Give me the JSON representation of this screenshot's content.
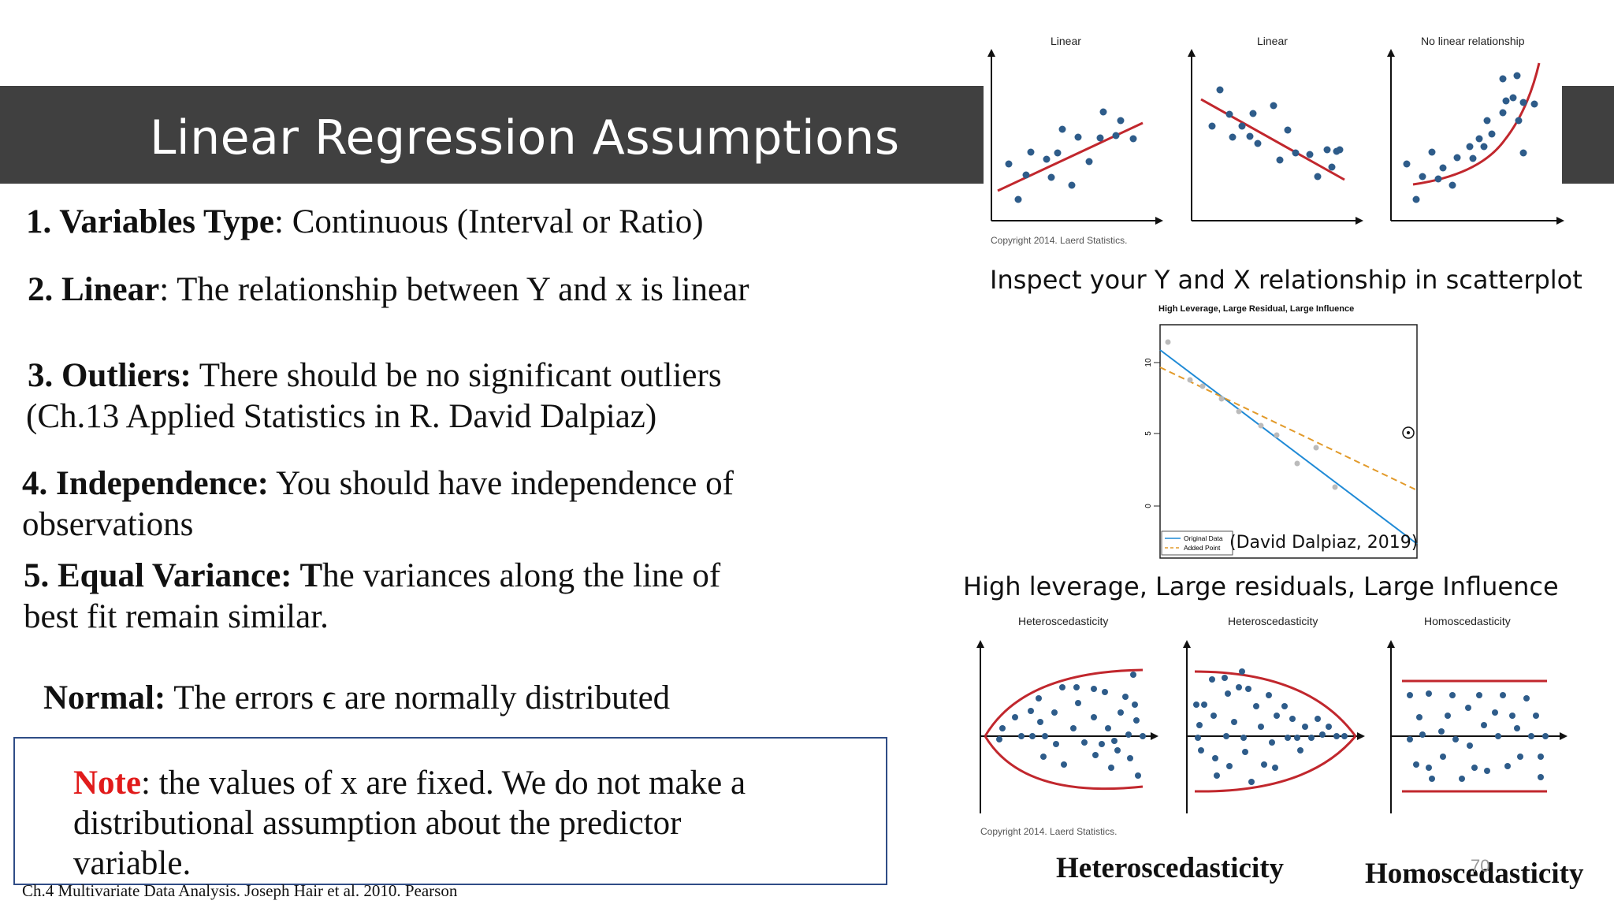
{
  "slide": {
    "title": "Linear Regression Assumptions",
    "page_number": "70"
  },
  "points": {
    "p1": {
      "label": "1. Variables Type",
      "text": ": Continuous (Interval or Ratio)"
    },
    "p2": {
      "label": "2. Linear",
      "text": ": The relationship between Y and x is linear"
    },
    "p3": {
      "label": "3. Outliers:",
      "text": " There should be no significant outliers",
      "line2": "(Ch.13 Applied Statistics in R. David Dalpiaz)"
    },
    "p4": {
      "label": "4. Independence:",
      "text": " You should have independence of",
      "line2": "observations"
    },
    "p5": {
      "label": "5. Equal Variance: T",
      "text": "he variances along the line of",
      "line2": "best fit remain similar."
    },
    "p6": {
      "label": "Normal:",
      "text": "  The errors ϵ are normally distributed"
    }
  },
  "note": {
    "label": "Note",
    "line1": ": the values of x are fixed. We do not make a",
    "line2": "distributional assumption about the predictor",
    "line3": "variable."
  },
  "citation": "Ch.4 Multivariate Data Analysis. Joseph Hair et al. 2010. Pearson",
  "right_panel": {
    "top_titles": [
      "Linear",
      "Linear",
      "No linear relationship"
    ],
    "top_copyright": "Copyright 2014. Laerd Statistics.",
    "top_caption": "Inspect your Y and X relationship in scatterplot",
    "mid_title": "High Leverage, Large Residual, Large Influence",
    "mid_ticks": [
      "10",
      "5",
      "0"
    ],
    "mid_legend": [
      "Original Data",
      "Added Point"
    ],
    "mid_credit": "(David Dalpiaz, 2019)",
    "mid_caption": "High leverage, Large residuals, Large Influence",
    "bottom_titles": [
      "Heteroscedasticity",
      "Heteroscedasticity",
      "Homoscedasticity"
    ],
    "bottom_copyright": "Copyright 2014. Laerd Statistics.",
    "bottom_big_left": "Heteroscedasticity",
    "bottom_big_right": "Homoscedasticity"
  },
  "colors": {
    "title_bar": "#404040",
    "dot": "#2e5c8a",
    "fit_line": "#c1272d",
    "note_red": "#e11b1b",
    "box_border": "#2f4c86",
    "blue_line": "#1f8ad6",
    "orange_line": "#e29a2a"
  }
}
